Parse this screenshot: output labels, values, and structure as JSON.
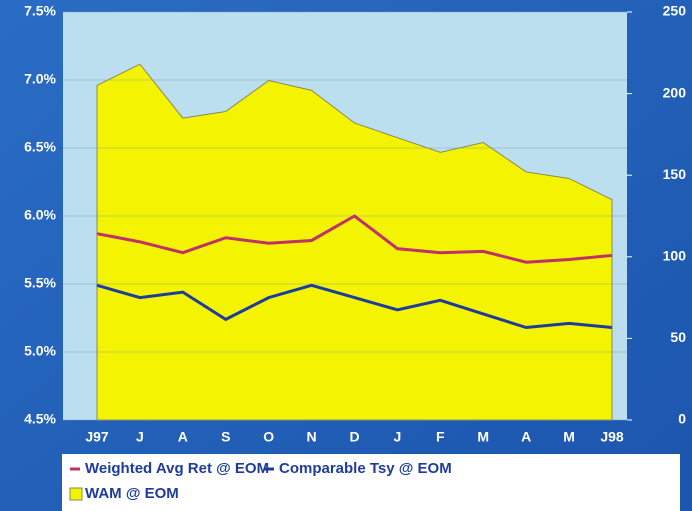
{
  "chart_data": {
    "type": "line-area",
    "categories": [
      "J97",
      "J",
      "A",
      "S",
      "O",
      "N",
      "D",
      "J",
      "F",
      "M",
      "A",
      "M",
      "J98"
    ],
    "series": [
      {
        "name": "Weighted Avg Ret @ EOM",
        "color": "#c2306a",
        "type": "line",
        "values": [
          5.87,
          5.81,
          5.73,
          5.84,
          5.8,
          5.82,
          6.0,
          5.76,
          5.73,
          5.74,
          5.66,
          5.68,
          5.71
        ]
      },
      {
        "name": "Comparable Tsy @ EOM",
        "color": "#1e3c9e",
        "type": "line",
        "values": [
          5.49,
          5.4,
          5.44,
          5.24,
          5.4,
          5.49,
          5.4,
          5.31,
          5.38,
          5.28,
          5.18,
          5.21,
          5.18
        ]
      },
      {
        "name": "WAM @ EOM",
        "color": "#f4f400",
        "type": "area",
        "axis": "y2",
        "values": [
          205,
          218,
          185,
          189,
          208,
          202,
          182,
          173,
          164,
          170,
          152,
          148,
          135
        ]
      }
    ],
    "ylim": [
      4.5,
      7.5
    ],
    "yticks": [
      {
        "value": 4.5,
        "label": "4.5%"
      },
      {
        "value": 5.0,
        "label": "5.0%"
      },
      {
        "value": 5.5,
        "label": "5.5%"
      },
      {
        "value": 6.0,
        "label": "6.0%"
      },
      {
        "value": 6.5,
        "label": "6.5%"
      },
      {
        "value": 7.0,
        "label": "7.0%"
      },
      {
        "value": 7.5,
        "label": "7.5%"
      }
    ],
    "y2lim": [
      0,
      250
    ],
    "y2ticks": [
      0,
      50,
      100,
      150,
      200,
      250
    ],
    "grid": true,
    "legend": "bottom"
  }
}
